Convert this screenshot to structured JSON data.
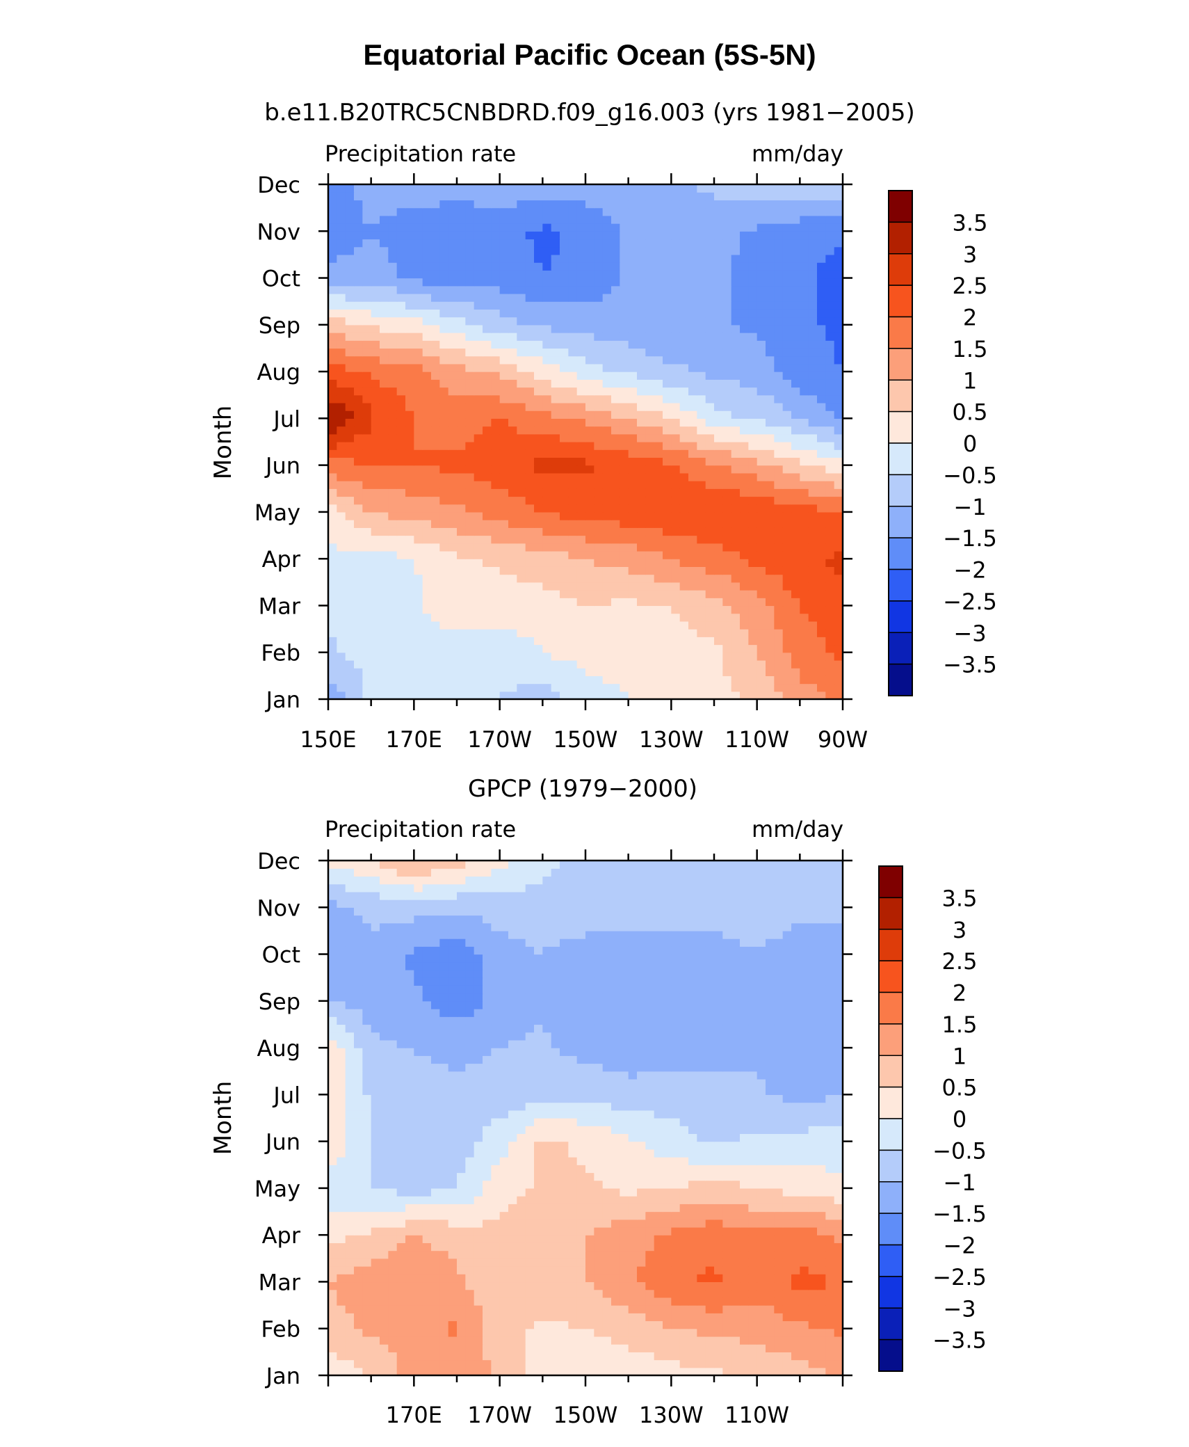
{
  "title": "Equatorial Pacific Ocean (5S-5N)",
  "chart_data": [
    {
      "type": "heatmap",
      "panel": "top",
      "subtitle": "b.e11.B20TRC5CNBDRD.f09_g16.003 (yrs 1981−2005)",
      "left_label": "Precipitation rate",
      "right_label": "mm/day",
      "ylabel": "Month",
      "x_tick_labels": [
        "150E",
        "170E",
        "170W",
        "150W",
        "130W",
        "110W",
        "90W"
      ],
      "y_tick_labels": [
        "Jan",
        "Feb",
        "Mar",
        "Apr",
        "May",
        "Jun",
        "Jul",
        "Aug",
        "Sep",
        "Oct",
        "Nov",
        "Dec"
      ],
      "xlim": [
        150,
        270
      ],
      "ylim": [
        1,
        12
      ],
      "lon": [
        150,
        160,
        170,
        180,
        190,
        200,
        210,
        220,
        230,
        240,
        250,
        260,
        270
      ],
      "values": [
        [
          -1.4,
          -0.4,
          -0.2,
          -0.3,
          -0.5,
          -0.8,
          -0.3,
          0.0,
          0.2,
          0.3,
          0.6,
          1.3,
          1.6
        ],
        [
          -0.6,
          -0.3,
          -0.1,
          -0.2,
          -0.3,
          0.0,
          0.2,
          0.3,
          0.3,
          0.4,
          1.0,
          1.7,
          2.1
        ],
        [
          -0.3,
          -0.2,
          -0.1,
          0.3,
          0.2,
          0.3,
          0.5,
          0.4,
          0.5,
          0.8,
          1.3,
          2.0,
          2.4
        ],
        [
          -0.1,
          -0.2,
          0.0,
          0.4,
          0.6,
          0.8,
          1.0,
          1.2,
          1.5,
          1.8,
          2.1,
          2.4,
          2.6
        ],
        [
          0.2,
          1.0,
          1.2,
          1.4,
          1.7,
          2.0,
          2.2,
          2.3,
          2.4,
          2.5,
          2.4,
          2.2,
          2.0
        ],
        [
          1.8,
          2.0,
          2.0,
          2.1,
          2.3,
          2.6,
          2.6,
          2.3,
          2.1,
          1.6,
          1.2,
          0.6,
          0.2
        ],
        [
          3.6,
          2.6,
          2.0,
          1.8,
          2.0,
          1.7,
          1.4,
          1.0,
          0.5,
          -0.3,
          -0.6,
          -1.0,
          -1.6
        ],
        [
          2.3,
          1.9,
          1.7,
          1.2,
          0.9,
          0.3,
          -0.3,
          -0.6,
          -0.9,
          -1.1,
          -1.2,
          -1.8,
          -2.0
        ],
        [
          0.8,
          0.4,
          0.2,
          -0.3,
          -0.8,
          -1.1,
          -1.2,
          -1.3,
          -1.4,
          -1.4,
          -1.6,
          -1.9,
          -2.1
        ],
        [
          -1.4,
          -1.2,
          -1.6,
          -1.8,
          -1.7,
          -2.0,
          -1.9,
          -1.4,
          -1.3,
          -1.4,
          -1.7,
          -1.9,
          -2.2
        ],
        [
          -1.8,
          -1.5,
          -1.9,
          -2.0,
          -1.8,
          -2.1,
          -1.9,
          -1.4,
          -1.3,
          -1.3,
          -1.6,
          -1.8,
          -1.9
        ],
        [
          -2.0,
          -1.2,
          -1.1,
          -1.2,
          -1.2,
          -1.2,
          -1.2,
          -1.2,
          -1.1,
          -0.9,
          -0.7,
          -0.6,
          -0.4
        ]
      ],
      "colorbar_labels": [
        "3.5",
        "3",
        "2.5",
        "2",
        "1.5",
        "1",
        "0.5",
        "0",
        "−0.5",
        "−1",
        "−1.5",
        "−2",
        "−2.5",
        "−3",
        "−3.5"
      ]
    },
    {
      "type": "heatmap",
      "panel": "bottom",
      "subtitle": "GPCP (1979−2000)",
      "left_label": "Precipitation rate",
      "right_label": "mm/day",
      "ylabel": "Month",
      "x_tick_labels": [
        "170E",
        "170W",
        "150W",
        "130W",
        "110W"
      ],
      "y_tick_labels": [
        "Jan",
        "Feb",
        "Mar",
        "Apr",
        "May",
        "Jun",
        "Jul",
        "Aug",
        "Sep",
        "Oct",
        "Nov",
        "Dec"
      ],
      "xlim": [
        150,
        270
      ],
      "ylim": [
        1,
        12
      ],
      "lon": [
        150,
        160,
        170,
        180,
        190,
        200,
        210,
        220,
        230,
        240,
        250,
        260,
        270
      ],
      "values": [
        [
          0.2,
          0.5,
          1.2,
          1.3,
          0.9,
          0.3,
          0.2,
          0.2,
          0.3,
          0.4,
          0.6,
          0.8,
          1.1
        ],
        [
          0.8,
          1.1,
          1.3,
          1.6,
          0.7,
          0.4,
          0.5,
          0.7,
          1.0,
          1.1,
          1.2,
          1.4,
          1.6
        ],
        [
          1.0,
          1.3,
          1.5,
          1.1,
          0.6,
          0.8,
          1.0,
          1.4,
          1.9,
          2.1,
          1.7,
          2.1,
          2.0
        ],
        [
          0.3,
          0.6,
          1.0,
          0.8,
          0.6,
          0.9,
          1.0,
          1.3,
          1.6,
          1.8,
          1.6,
          1.8,
          1.4
        ],
        [
          -0.4,
          -0.5,
          -0.7,
          -0.5,
          0.3,
          0.6,
          0.6,
          0.4,
          0.5,
          0.7,
          0.5,
          0.3,
          0.1
        ],
        [
          0.5,
          -0.6,
          -0.9,
          -0.8,
          -0.2,
          0.6,
          0.4,
          0.1,
          -0.3,
          -0.6,
          -0.4,
          -0.3,
          -0.2
        ],
        [
          0.6,
          -0.6,
          -0.9,
          -0.9,
          -0.8,
          -0.7,
          -0.6,
          -0.8,
          -0.7,
          -0.8,
          -0.9,
          -1.2,
          -1.0
        ],
        [
          0.4,
          -0.9,
          -1.0,
          -1.1,
          -1.0,
          -0.9,
          -1.2,
          -1.3,
          -1.3,
          -1.2,
          -1.1,
          -1.3,
          -1.1
        ],
        [
          -1.0,
          -1.2,
          -1.4,
          -1.8,
          -1.3,
          -1.1,
          -1.4,
          -1.5,
          -1.4,
          -1.4,
          -1.1,
          -1.2,
          -1.4
        ],
        [
          -1.1,
          -1.1,
          -1.6,
          -1.8,
          -1.2,
          -1.0,
          -1.3,
          -1.4,
          -1.2,
          -1.2,
          -1.0,
          -1.2,
          -1.5
        ],
        [
          -1.2,
          -0.9,
          -0.8,
          -0.9,
          -0.8,
          -0.7,
          -0.6,
          -0.7,
          -0.8,
          -0.8,
          -0.8,
          -0.9,
          -0.8
        ],
        [
          0.2,
          0.5,
          1.2,
          0.7,
          0.2,
          -0.4,
          -0.6,
          -0.6,
          -0.7,
          -0.7,
          -0.6,
          -0.6,
          -0.7
        ]
      ],
      "colorbar_labels": [
        "3.5",
        "3",
        "2.5",
        "2",
        "1.5",
        "1",
        "0.5",
        "0",
        "−0.5",
        "−1",
        "−1.5",
        "−2",
        "−2.5",
        "−3",
        "−3.5"
      ]
    }
  ],
  "colors": {
    "levels_high_to_low": [
      "#7f0000",
      "#b22000",
      "#de3c0a",
      "#f7541e",
      "#fa7a48",
      "#fc9f7a",
      "#fdc7ad",
      "#fee8dc",
      "#d6e9fb",
      "#b4ccfa",
      "#8eb0fa",
      "#5f8df8",
      "#2f5ef5",
      "#1136e3",
      "#0a20b8",
      "#050e8c"
    ],
    "axis": "#000000"
  }
}
